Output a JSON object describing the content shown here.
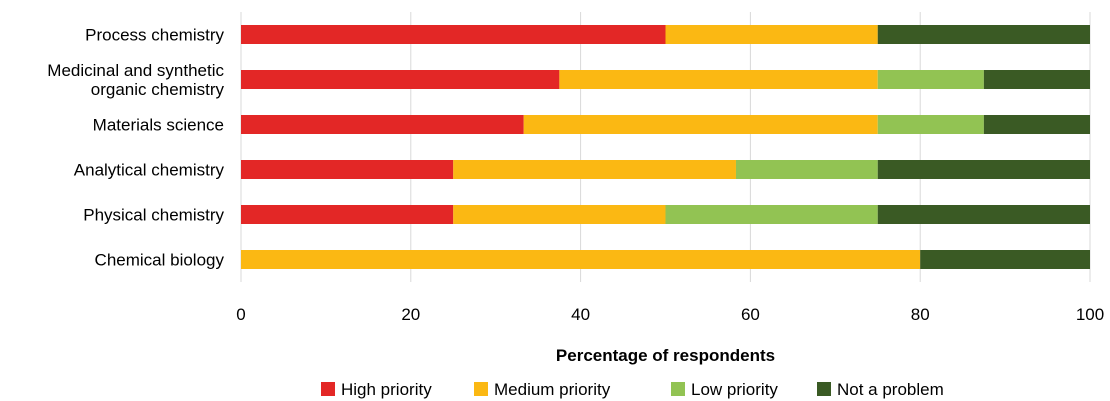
{
  "chart_data": {
    "type": "bar",
    "orientation": "horizontal",
    "stacked": true,
    "categories": [
      "Process chemistry",
      "Medicinal and synthetic organic chemistry",
      "Materials science",
      "Analytical chemistry",
      "Physical chemistry",
      "Chemical biology"
    ],
    "category_lines": [
      [
        "Process chemistry"
      ],
      [
        "Medicinal and synthetic",
        "organic chemistry"
      ],
      [
        "Materials science"
      ],
      [
        "Analytical chemistry"
      ],
      [
        "Physical chemistry"
      ],
      [
        "Chemical biology"
      ]
    ],
    "series": [
      {
        "name": "High priority",
        "color": "#e32726",
        "values": [
          50,
          37.5,
          33.3,
          25,
          25,
          0
        ]
      },
      {
        "name": "Medium priority",
        "color": "#fbb813",
        "values": [
          25,
          37.5,
          41.7,
          33.3,
          25,
          80
        ]
      },
      {
        "name": "Low priority",
        "color": "#92c353",
        "values": [
          0,
          12.5,
          12.5,
          16.7,
          25,
          0
        ]
      },
      {
        "name": "Not a problem",
        "color": "#3a5a24",
        "values": [
          25,
          12.5,
          12.5,
          25,
          25,
          20
        ]
      }
    ],
    "xlabel": "Percentage of respondents",
    "ylabel": "",
    "xlim": [
      0,
      100
    ],
    "xticks": [
      0,
      20,
      40,
      60,
      80,
      100
    ],
    "grid": "vertical",
    "legend": "bottom"
  }
}
